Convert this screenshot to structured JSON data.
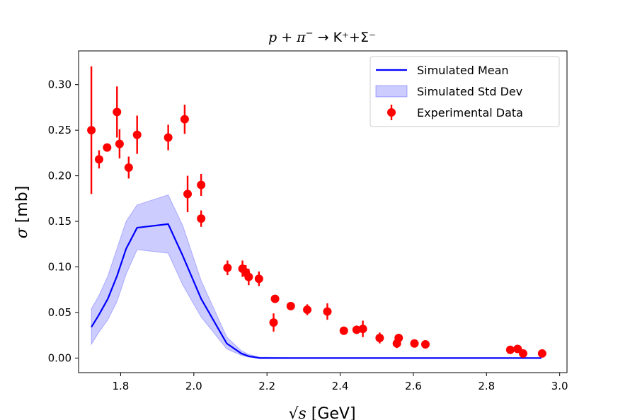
{
  "chart_data": {
    "type": "line",
    "title_parts": {
      "p": "p",
      "plus": " + ",
      "pi": "π",
      "pi_charge": "−",
      "arrow": " → ",
      "products": "K⁺+Σ⁻"
    },
    "xlabel": "√s [GeV]",
    "xlabel_parts": {
      "sqrt": "√",
      "s": "s",
      "unit": " [GeV]"
    },
    "ylabel": "σ [mb]",
    "ylabel_parts": {
      "sigma": "σ",
      "unit": " [mb]"
    },
    "xlim": [
      1.685,
      3.02
    ],
    "ylim": [
      -0.016,
      0.337
    ],
    "x_ticks": [
      1.8,
      2.0,
      2.2,
      2.4,
      2.6,
      2.8,
      3.0
    ],
    "x_tick_labels": [
      "1.8",
      "2.0",
      "2.2",
      "2.4",
      "2.6",
      "2.8",
      "3.0"
    ],
    "y_ticks": [
      0.0,
      0.05,
      0.1,
      0.15,
      0.2,
      0.25,
      0.3
    ],
    "y_tick_labels": [
      "0.00",
      "0.05",
      "0.10",
      "0.15",
      "0.20",
      "0.25",
      "0.30"
    ],
    "grid": false,
    "legend_position": "top-right",
    "legend": [
      "Simulated Mean",
      "Simulated Std Dev",
      "Experimental Data"
    ],
    "colors": {
      "mean": "#0000ff",
      "band": "#0000ff",
      "data": "#ff0000"
    },
    "series": [
      {
        "name": "Simulated Mean",
        "x": [
          1.72,
          1.74,
          1.765,
          1.79,
          1.815,
          1.845,
          1.93,
          1.97,
          2.02,
          2.09,
          2.13,
          2.15,
          2.18,
          2.3,
          2.5,
          2.7,
          2.95
        ],
        "y": [
          0.034,
          0.047,
          0.065,
          0.09,
          0.12,
          0.143,
          0.147,
          0.112,
          0.065,
          0.016,
          0.005,
          0.002,
          0.0,
          0.0,
          0.0,
          0.0,
          0.0
        ]
      },
      {
        "name": "Simulated Std Dev",
        "x": [
          1.72,
          1.74,
          1.765,
          1.79,
          1.815,
          1.845,
          1.93,
          1.97,
          2.02,
          2.09,
          2.13,
          2.15,
          2.18,
          2.3,
          2.5,
          2.7,
          2.95
        ],
        "upper": [
          0.054,
          0.068,
          0.09,
          0.12,
          0.15,
          0.168,
          0.179,
          0.145,
          0.085,
          0.023,
          0.008,
          0.004,
          0.001,
          0.0,
          0.0,
          0.0,
          0.0
        ],
        "lower": [
          0.015,
          0.028,
          0.042,
          0.062,
          0.092,
          0.119,
          0.115,
          0.08,
          0.045,
          0.01,
          0.003,
          0.001,
          0.0,
          0.0,
          0.0,
          0.0,
          0.0
        ]
      }
    ],
    "points": [
      {
        "x": 1.72,
        "y": 0.25,
        "err": 0.07
      },
      {
        "x": 1.741,
        "y": 0.218,
        "err": 0.01
      },
      {
        "x": 1.763,
        "y": 0.231,
        "err": 0.004
      },
      {
        "x": 1.79,
        "y": 0.27,
        "err": 0.028
      },
      {
        "x": 1.797,
        "y": 0.235,
        "err": 0.016
      },
      {
        "x": 1.822,
        "y": 0.209,
        "err": 0.012
      },
      {
        "x": 1.845,
        "y": 0.245,
        "err": 0.021
      },
      {
        "x": 1.93,
        "y": 0.242,
        "err": 0.014
      },
      {
        "x": 1.975,
        "y": 0.262,
        "err": 0.016
      },
      {
        "x": 1.983,
        "y": 0.18,
        "err": 0.02
      },
      {
        "x": 2.02,
        "y": 0.19,
        "err": 0.012
      },
      {
        "x": 2.02,
        "y": 0.153,
        "err": 0.009
      },
      {
        "x": 2.092,
        "y": 0.099,
        "err": 0.008
      },
      {
        "x": 2.133,
        "y": 0.098,
        "err": 0.009
      },
      {
        "x": 2.142,
        "y": 0.094,
        "err": 0.008
      },
      {
        "x": 2.15,
        "y": 0.089,
        "err": 0.009
      },
      {
        "x": 2.178,
        "y": 0.087,
        "err": 0.008
      },
      {
        "x": 2.218,
        "y": 0.039,
        "err": 0.01
      },
      {
        "x": 2.222,
        "y": 0.065,
        "err": 0.004
      },
      {
        "x": 2.265,
        "y": 0.057,
        "err": 0.004
      },
      {
        "x": 2.31,
        "y": 0.053,
        "err": 0.006
      },
      {
        "x": 2.365,
        "y": 0.051,
        "err": 0.009
      },
      {
        "x": 2.41,
        "y": 0.03,
        "err": 0.003
      },
      {
        "x": 2.445,
        "y": 0.031,
        "err": 0.004
      },
      {
        "x": 2.462,
        "y": 0.032,
        "err": 0.009
      },
      {
        "x": 2.508,
        "y": 0.022,
        "err": 0.006
      },
      {
        "x": 2.555,
        "y": 0.016,
        "err": 0.005
      },
      {
        "x": 2.56,
        "y": 0.022,
        "err": 0.003
      },
      {
        "x": 2.603,
        "y": 0.016,
        "err": 0.004
      },
      {
        "x": 2.633,
        "y": 0.015,
        "err": 0.004
      },
      {
        "x": 2.865,
        "y": 0.009,
        "err": 0.003
      },
      {
        "x": 2.885,
        "y": 0.01,
        "err": 0.003
      },
      {
        "x": 2.9,
        "y": 0.005,
        "err": 0.002
      },
      {
        "x": 2.952,
        "y": 0.005,
        "err": 0.002
      }
    ]
  }
}
